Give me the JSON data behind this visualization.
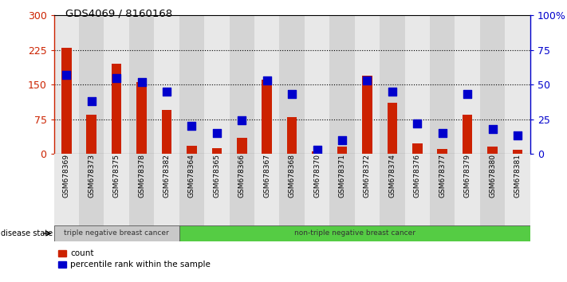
{
  "title": "GDS4069 / 8160168",
  "samples": [
    "GSM678369",
    "GSM678373",
    "GSM678375",
    "GSM678378",
    "GSM678382",
    "GSM678364",
    "GSM678365",
    "GSM678366",
    "GSM678367",
    "GSM678368",
    "GSM678370",
    "GSM678371",
    "GSM678372",
    "GSM678374",
    "GSM678376",
    "GSM678377",
    "GSM678379",
    "GSM678380",
    "GSM678381"
  ],
  "counts": [
    230,
    85,
    195,
    155,
    95,
    18,
    12,
    35,
    160,
    80,
    5,
    15,
    170,
    110,
    22,
    10,
    85,
    15,
    8
  ],
  "percentiles": [
    57,
    38,
    55,
    52,
    45,
    20,
    15,
    24,
    53,
    43,
    3,
    10,
    53,
    45,
    22,
    15,
    43,
    18,
    13
  ],
  "triple_neg_count": 5,
  "left_group_label": "triple negative breast cancer",
  "right_group_label": "non-triple negative breast cancer",
  "disease_state_label": "disease state",
  "legend_count": "count",
  "legend_percentile": "percentile rank within the sample",
  "ylim_left": [
    0,
    300
  ],
  "ylim_right": [
    0,
    100
  ],
  "yticks_left": [
    0,
    75,
    150,
    225,
    300
  ],
  "yticks_right": [
    0,
    25,
    50,
    75,
    100
  ],
  "ytick_labels_left": [
    "0",
    "75",
    "150",
    "225",
    "300"
  ],
  "ytick_labels_right": [
    "0",
    "25",
    "50",
    "75",
    "100%"
  ],
  "bar_color": "#cc2200",
  "dot_color": "#0000cc",
  "left_group_bg": "#c8c8c8",
  "right_group_bg": "#55cc44",
  "col_bg_odd": "#e8e8e8",
  "col_bg_even": "#d8d8d8",
  "grid_color": "#000000",
  "bg_color": "#ffffff",
  "title_color": "#000000",
  "left_axis_color": "#cc2200",
  "right_axis_color": "#0000cc",
  "bar_width": 0.4,
  "dot_size": 55
}
